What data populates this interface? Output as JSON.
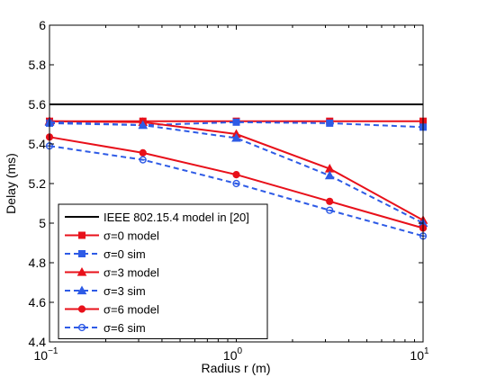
{
  "chart_data": {
    "type": "line",
    "x_scale": "log",
    "xlim": [
      0.1,
      10
    ],
    "ylim": [
      4.4,
      6
    ],
    "xlabel": "Radius r (m)",
    "ylabel": "Delay (ms)",
    "x_ticks": [
      {
        "value": 0.1,
        "base": "10",
        "exp": "−1"
      },
      {
        "value": 1,
        "base": "10",
        "exp": "0"
      },
      {
        "value": 10,
        "base": "10",
        "exp": "1"
      }
    ],
    "y_ticks": [
      4.4,
      4.6,
      4.8,
      5,
      5.2,
      5.4,
      5.6,
      5.8,
      6
    ],
    "y_tick_labels": [
      "4.4",
      "4.6",
      "4.8",
      "5",
      "5.2",
      "5.4",
      "5.6",
      "5.8",
      "6"
    ],
    "grid": false,
    "legend_position": "bottom-left",
    "x": [
      0.1,
      0.3162,
      1,
      3.162,
      10
    ],
    "series": [
      {
        "name": "IEEE 802.15.4 model in [20]",
        "values": [
          5.6,
          5.6,
          5.6,
          5.6,
          5.6
        ],
        "color": "#000000",
        "dash": "solid",
        "marker": "none"
      },
      {
        "name": "σ=0 model",
        "values": [
          5.515,
          5.515,
          5.515,
          5.515,
          5.515
        ],
        "color": "#e8101a",
        "dash": "solid",
        "marker": "square"
      },
      {
        "name": "σ=0 sim",
        "values": [
          5.505,
          5.495,
          5.51,
          5.505,
          5.485
        ],
        "color": "#2e5be6",
        "dash": "dashed",
        "marker": "square"
      },
      {
        "name": "σ=3 model",
        "values": [
          5.515,
          5.51,
          5.45,
          5.275,
          5.015
        ],
        "color": "#e8101a",
        "dash": "solid",
        "marker": "triangle"
      },
      {
        "name": "σ=3 sim",
        "values": [
          5.51,
          5.495,
          5.43,
          5.24,
          5.0
        ],
        "color": "#2e5be6",
        "dash": "dashed",
        "marker": "triangle"
      },
      {
        "name": "σ=6 model",
        "values": [
          5.435,
          5.355,
          5.245,
          5.11,
          4.975
        ],
        "color": "#e8101a",
        "dash": "solid",
        "marker": "circle"
      },
      {
        "name": "σ=6 sim",
        "values": [
          5.39,
          5.32,
          5.2,
          5.065,
          4.935
        ],
        "color": "#2e5be6",
        "dash": "dashed",
        "marker": "circle-open"
      }
    ]
  }
}
